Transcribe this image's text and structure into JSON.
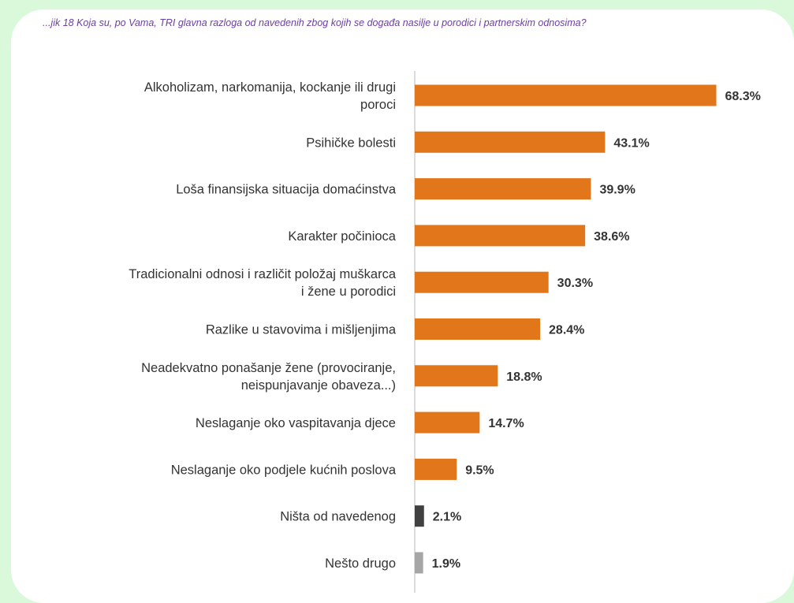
{
  "chart_data": {
    "type": "bar",
    "orientation": "horizontal",
    "title": "...jik 18 Koja su, po Vama, TRI glavna razloga od navedenih zbog kojih se događa nasilje u porodici i partnerskim odnosima?",
    "categories": [
      "Alkoholizam, narkomanija, kockanje ili drugi poroci",
      "Psihičke bolesti",
      "Loša finansijska situacija domaćinstva",
      "Karakter počinioca",
      "Tradicionalni odnosi i različit položaj muškarca i žene u porodici",
      "Razlike u stavovima i mišljenjima",
      "Neadekvatno ponašanje žene (provociranje, neispunjavanje obaveza...)",
      "Neslaganje oko vaspitavanja djece",
      "Neslaganje oko podjele kućnih poslova",
      "Ništa od navedenog",
      "Nešto drugo"
    ],
    "category_lines": [
      [
        "Alkoholizam, narkomanija, kockanje ili drugi",
        "poroci"
      ],
      [
        "Psihičke bolesti"
      ],
      [
        "Loša finansijska situacija domaćinstva"
      ],
      [
        "Karakter počinioca"
      ],
      [
        "Tradicionalni odnosi i različit položaj muškarca",
        "i žene u porodici"
      ],
      [
        "Razlike u stavovima i mišljenjima"
      ],
      [
        "Neadekvatno ponašanje žene (provociranje,",
        "neispunjavanje obaveza...)"
      ],
      [
        "Neslaganje oko vaspitavanja djece"
      ],
      [
        "Neslaganje oko podjele kućnih poslova"
      ],
      [
        "Ništa od navedenog"
      ],
      [
        "Nešto drugo"
      ]
    ],
    "values": [
      68.3,
      43.1,
      39.9,
      38.6,
      30.3,
      28.4,
      18.8,
      14.7,
      9.5,
      2.1,
      1.9
    ],
    "value_labels": [
      "68.3%",
      "43.1%",
      "39.9%",
      "38.6%",
      "30.3%",
      "28.4%",
      "18.8%",
      "14.7%",
      "9.5%",
      "2.1%",
      "1.9%"
    ],
    "bar_colors": [
      "#e2761b",
      "#e2761b",
      "#e2761b",
      "#e2761b",
      "#e2761b",
      "#e2761b",
      "#e2761b",
      "#e2761b",
      "#e2761b",
      "#404040",
      "#a6a6a6"
    ],
    "xlim": [
      0,
      70
    ],
    "grid": false,
    "legend": "none"
  },
  "colors": {
    "background": "#d9f9da",
    "card": "#ffffff",
    "title": "#6b3fa0",
    "axis": "#d0d0d0",
    "text": "#333333"
  }
}
